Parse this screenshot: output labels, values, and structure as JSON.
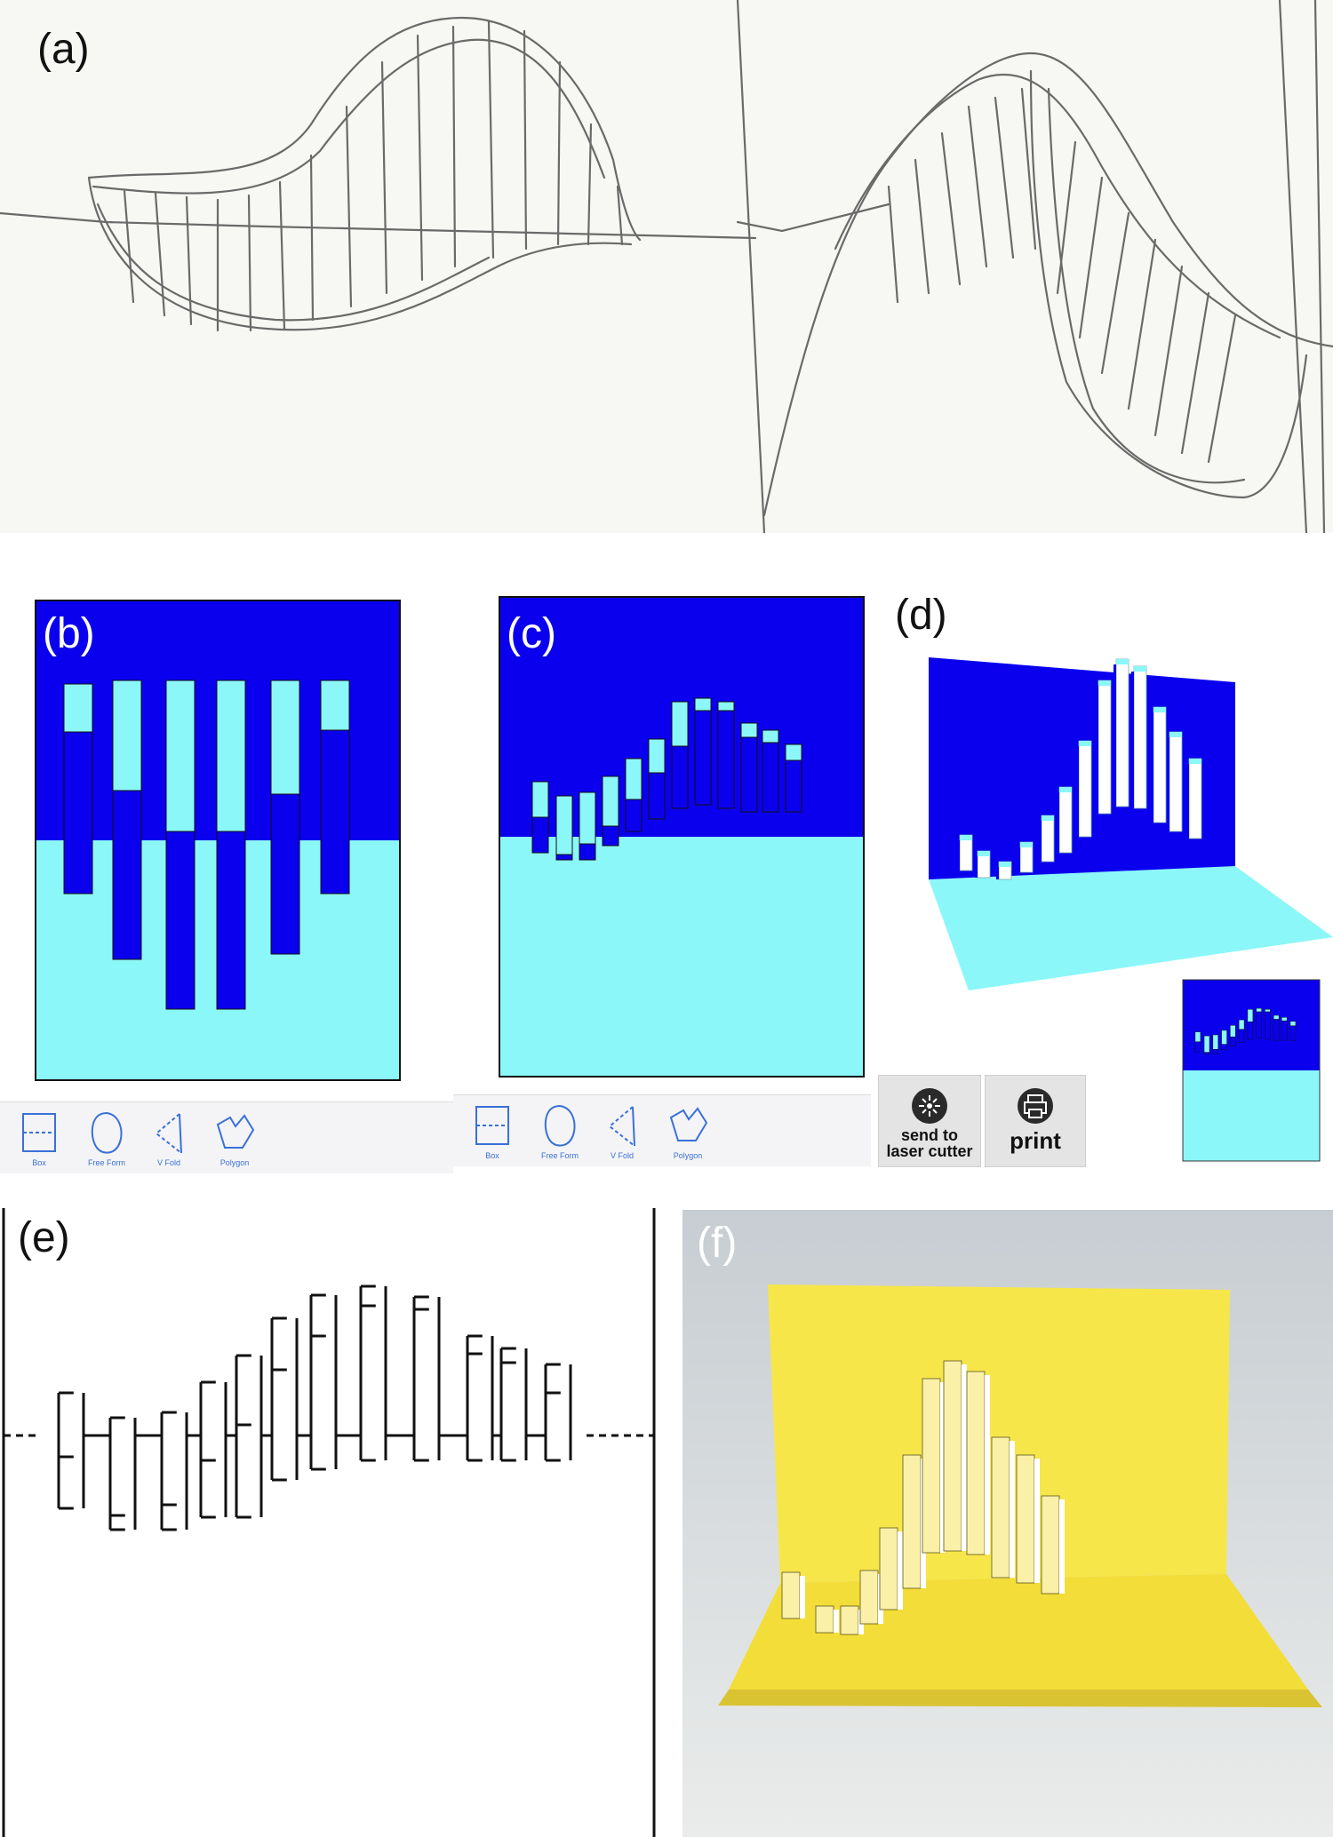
{
  "panels": {
    "a": {
      "label": "(a)"
    },
    "b": {
      "label": "(b)"
    },
    "c": {
      "label": "(c)"
    },
    "d": {
      "label": "(d)"
    },
    "e": {
      "label": "(e)"
    },
    "f": {
      "label": "(f)"
    }
  },
  "colors": {
    "dark_blue": "#0a00ee",
    "light_cyan": "#8cf7f8",
    "paper_yellow": "#f6e64a",
    "ui_blue": "#3a70d8"
  },
  "toolbar": {
    "tools": [
      {
        "label": "Box",
        "icon": "box-tool-icon"
      },
      {
        "label": "Free Form",
        "icon": "freeform-tool-icon"
      },
      {
        "label": "V Fold",
        "icon": "vfold-tool-icon"
      },
      {
        "label": "Polygon",
        "icon": "polygon-tool-icon"
      }
    ]
  },
  "actions": {
    "laser": {
      "label_line1": "send to",
      "label_line2": "laser cutter",
      "icon": "laser-icon"
    },
    "print": {
      "label": "print",
      "icon": "printer-icon"
    }
  }
}
